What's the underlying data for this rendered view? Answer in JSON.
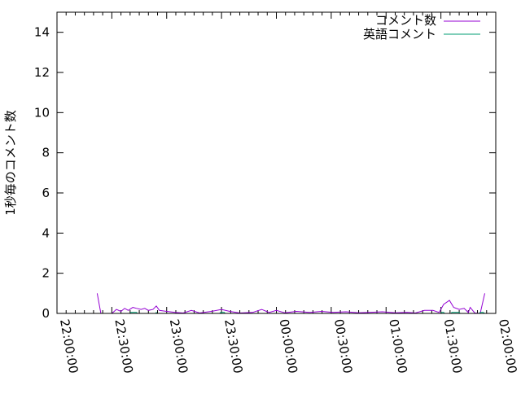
{
  "chart_data": {
    "type": "line",
    "title": "",
    "xlabel": "",
    "ylabel": "1秒毎のコメント数",
    "xlim": [
      "22:00:00",
      "02:00:00"
    ],
    "ylim": [
      0,
      15
    ],
    "xticks": [
      "22:00:00",
      "22:30:00",
      "23:00:00",
      "23:30:00",
      "00:00:00",
      "00:30:00",
      "01:00:00",
      "01:30:00",
      "02:00:00"
    ],
    "yticks": [
      "0",
      "2",
      "4",
      "6",
      "8",
      "10",
      "12",
      "14"
    ],
    "grid": false,
    "legend": "top-right",
    "series": [
      {
        "name": "コメント数",
        "color": "#9400d3",
        "points": [
          [
            "22:22:00",
            1.0
          ],
          [
            "22:24:00",
            0
          ],
          [
            "22:30:00",
            0
          ],
          [
            "22:32:30",
            0.2
          ],
          [
            "22:35:00",
            0.1
          ],
          [
            "22:37:00",
            0.25
          ],
          [
            "22:39:00",
            0.15
          ],
          [
            "22:41:30",
            0.3
          ],
          [
            "22:43:30",
            0.25
          ],
          [
            "22:46:00",
            0.2
          ],
          [
            "22:48:00",
            0.25
          ],
          [
            "22:50:00",
            0.15
          ],
          [
            "22:52:30",
            0.2
          ],
          [
            "22:54:20",
            0.37
          ],
          [
            "22:56:00",
            0.15
          ],
          [
            "23:00:00",
            0.1
          ],
          [
            "23:04:30",
            0.05
          ],
          [
            "23:09:00",
            0.02
          ],
          [
            "23:13:30",
            0.15
          ],
          [
            "23:18:00",
            0.02
          ],
          [
            "23:24:30",
            0.1
          ],
          [
            "23:30:00",
            0.2
          ],
          [
            "23:34:30",
            0.1
          ],
          [
            "23:40:00",
            0.02
          ],
          [
            "23:47:00",
            0.05
          ],
          [
            "23:52:00",
            0.2
          ],
          [
            "23:56:00",
            0.05
          ],
          [
            "00:00:00",
            0.15
          ],
          [
            "00:04:40",
            0.03
          ],
          [
            "00:11:00",
            0.1
          ],
          [
            "00:18:00",
            0.05
          ],
          [
            "00:24:40",
            0.1
          ],
          [
            "00:31:00",
            0.05
          ],
          [
            "00:38:00",
            0.08
          ],
          [
            "00:45:00",
            0.03
          ],
          [
            "00:51:00",
            0.05
          ],
          [
            "00:58:00",
            0.08
          ],
          [
            "01:05:00",
            0.03
          ],
          [
            "01:11:30",
            0.05
          ],
          [
            "01:16:00",
            0.02
          ],
          [
            "01:21:00",
            0.15
          ],
          [
            "01:25:40",
            0.15
          ],
          [
            "01:29:00",
            0.05
          ],
          [
            "01:31:30",
            0.45
          ],
          [
            "01:34:40",
            0.65
          ],
          [
            "01:37:00",
            0.3
          ],
          [
            "01:40:00",
            0.2
          ],
          [
            "01:42:40",
            0.25
          ],
          [
            "01:45:00",
            0.05
          ],
          [
            "01:46:00",
            0.3
          ],
          [
            "01:48:30",
            0.02
          ],
          [
            "01:51:30",
            0
          ],
          [
            "01:54:00",
            1.0
          ]
        ]
      },
      {
        "name": "英語コメント",
        "color": "#009e73",
        "points": [
          [
            "22:22:00",
            0
          ],
          [
            "22:40:00",
            0
          ],
          [
            "22:40:30",
            0.05
          ],
          [
            "22:43:30",
            0.05
          ],
          [
            "22:44:00",
            0
          ],
          [
            "22:54:00",
            0
          ],
          [
            "22:54:20",
            0.05
          ],
          [
            "22:54:40",
            0
          ],
          [
            "23:29:00",
            0
          ],
          [
            "23:29:30",
            0.05
          ],
          [
            "23:31:30",
            0.05
          ],
          [
            "23:32:00",
            0
          ],
          [
            "01:30:00",
            0
          ],
          [
            "01:30:30",
            0.05
          ],
          [
            "01:31:30",
            0.05
          ],
          [
            "01:32:00",
            0
          ],
          [
            "01:35:30",
            0
          ],
          [
            "01:36:00",
            0.05
          ],
          [
            "01:40:00",
            0.05
          ],
          [
            "01:40:30",
            0
          ],
          [
            "01:51:00",
            0
          ],
          [
            "01:51:30",
            0.05
          ],
          [
            "01:53:00",
            0.05
          ],
          [
            "01:54:00",
            0
          ]
        ]
      }
    ]
  }
}
